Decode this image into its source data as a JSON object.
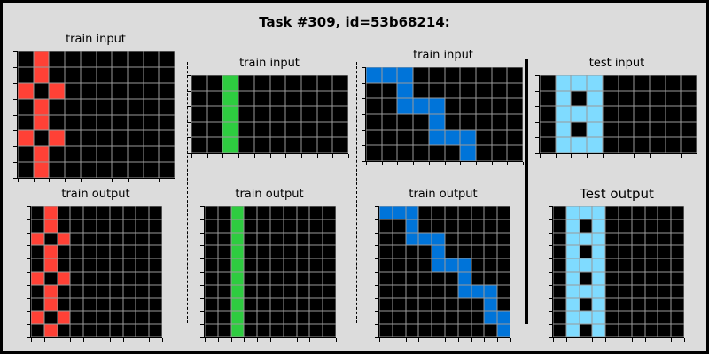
{
  "title": "Task #309, id=53b68214:",
  "labels": {
    "train_input": "train input",
    "train_output": "train output",
    "test_input": "test input",
    "test_output": "Test output"
  },
  "palette": {
    "0": "#000000",
    "1": "#0074D9",
    "2": "#FF4136",
    "3": "#2ECC40",
    "8": "#7FDBFF"
  },
  "panels": [
    {
      "name": "pair1-input",
      "rows": [
        "0200000000",
        "0200000000",
        "2020000000",
        "0200000000",
        "0200000000",
        "2020000000",
        "0200000000",
        "0200000000"
      ]
    },
    {
      "name": "pair1-output",
      "rows": [
        "0200000000",
        "0200000000",
        "2020000000",
        "0200000000",
        "0200000000",
        "2020000000",
        "0200000000",
        "0200000000",
        "2020000000",
        "0200000000"
      ]
    },
    {
      "name": "pair2-input",
      "rows": [
        "0030000000",
        "0030000000",
        "0030000000",
        "0030000000",
        "0030000000"
      ]
    },
    {
      "name": "pair2-output",
      "rows": [
        "0030000000",
        "0030000000",
        "0030000000",
        "0030000000",
        "0030000000",
        "0030000000",
        "0030000000",
        "0030000000",
        "0030000000",
        "0030000000"
      ]
    },
    {
      "name": "pair3-input",
      "rows": [
        "1110000000",
        "0010000000",
        "0011100000",
        "0000100000",
        "0000111000",
        "0000001000"
      ]
    },
    {
      "name": "pair3-output",
      "rows": [
        "1110000000",
        "0010000000",
        "0011100000",
        "0000100000",
        "0000111000",
        "0000001000",
        "0000001110",
        "0000000010",
        "0000000011",
        "0000000001"
      ]
    },
    {
      "name": "test-input",
      "rows": [
        "0888000000",
        "0808000000",
        "0888000000",
        "0808000000",
        "0888000000"
      ]
    },
    {
      "name": "test-output",
      "rows": [
        "0888000000",
        "0808000000",
        "0888000000",
        "0808000000",
        "0888000000",
        "0808000000",
        "0888000000",
        "0808000000",
        "0888000000",
        "0808000000"
      ]
    }
  ]
}
